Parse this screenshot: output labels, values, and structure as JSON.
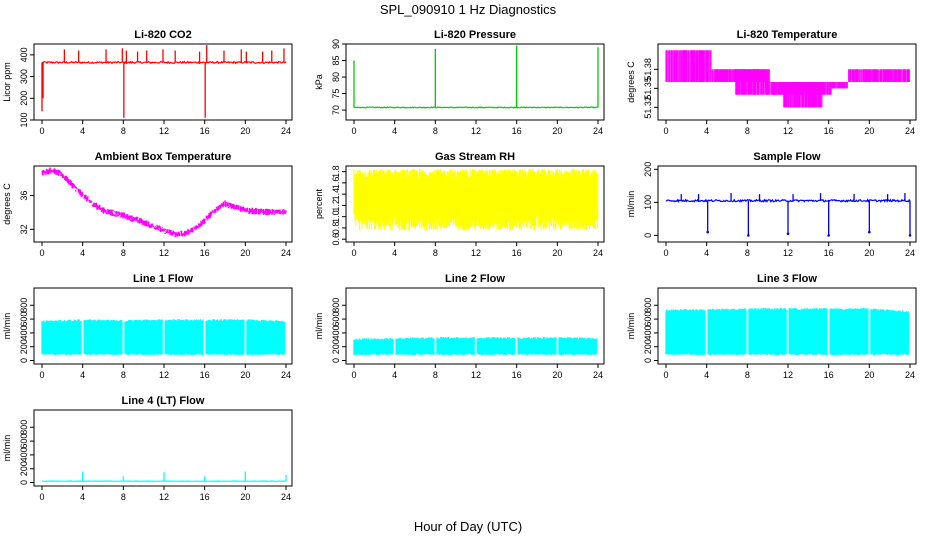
{
  "figure": {
    "title": "SPL_090910  1 Hz Diagnostics",
    "xlabel": "Hour of Day (UTC)"
  },
  "chart_data": [
    {
      "id": "co2",
      "type": "line",
      "title": "Li-820 CO2",
      "ylabel": "Licor ppm",
      "color": "#ff0000",
      "xlim": [
        0,
        24
      ],
      "ylim": [
        100,
        450
      ],
      "yticks": [
        "100",
        "200",
        "300",
        "400"
      ],
      "ytick_values": [
        100,
        200,
        300,
        400
      ],
      "xticks": [
        "0",
        "4",
        "8",
        "12",
        "16",
        "20",
        "24"
      ],
      "baseline": 365,
      "noise": 8,
      "drift": [],
      "spikes": [
        [
          0,
          140
        ],
        [
          0.1,
          200
        ],
        [
          2.2,
          425
        ],
        [
          3.6,
          420
        ],
        [
          6.3,
          425
        ],
        [
          7.9,
          430
        ],
        [
          8.05,
          110
        ],
        [
          8.3,
          420
        ],
        [
          9.4,
          415
        ],
        [
          10.3,
          420
        ],
        [
          11.9,
          425
        ],
        [
          13.1,
          420
        ],
        [
          15.5,
          415
        ],
        [
          16.05,
          110
        ],
        [
          16.2,
          445
        ],
        [
          17.9,
          420
        ],
        [
          19.6,
          425
        ],
        [
          20.1,
          415
        ],
        [
          21.7,
          415
        ],
        [
          22.6,
          420
        ],
        [
          23.8,
          430
        ]
      ],
      "drops": []
    },
    {
      "id": "pressure",
      "type": "line",
      "title": "Li-820 Pressure",
      "ylabel": "kPa",
      "color": "#00cc00",
      "xlim": [
        0,
        24
      ],
      "ylim": [
        67,
        90
      ],
      "yticks": [
        "70",
        "75",
        "80",
        "85",
        "90"
      ],
      "ytick_values": [
        70,
        75,
        80,
        85,
        90
      ],
      "xticks": [
        "0",
        "4",
        "8",
        "12",
        "16",
        "20",
        "24"
      ],
      "baseline": 70.8,
      "noise": 0.25,
      "drift": [],
      "spikes": [
        [
          0,
          85
        ],
        [
          8,
          88.5
        ],
        [
          16,
          89.5
        ],
        [
          24,
          89
        ]
      ],
      "drops": []
    },
    {
      "id": "temperature",
      "type": "line",
      "title": "Li-820 Temperature",
      "ylabel": "degrees C",
      "color": "#ff00ff",
      "xlim": [
        0,
        24
      ],
      "ylim": [
        51.3,
        51.42
      ],
      "yticks": [
        "51.32",
        "51.35",
        "51.38"
      ],
      "ytick_values": [
        51.32,
        51.35,
        51.38
      ],
      "xticks": [
        "0",
        "4",
        "8",
        "12",
        "16",
        "20",
        "24"
      ],
      "steps": [
        [
          0,
          4.5,
          51.36,
          51.41
        ],
        [
          4.5,
          9.8,
          51.36,
          51.38
        ],
        [
          6.8,
          10.2,
          51.34,
          51.38
        ],
        [
          10.2,
          16.3,
          51.34,
          51.36
        ],
        [
          11.5,
          15.4,
          51.32,
          51.36
        ],
        [
          16.3,
          17.9,
          51.35,
          51.36
        ],
        [
          17.9,
          24,
          51.36,
          51.38
        ]
      ]
    },
    {
      "id": "ambient",
      "type": "line",
      "title": "Ambient Box Temperature",
      "ylabel": "degrees C",
      "color": "#ff00ff",
      "xlim": [
        0,
        24
      ],
      "ylim": [
        30.5,
        39.5
      ],
      "yticks": [
        "32",
        "36"
      ],
      "ytick_values": [
        32,
        36
      ],
      "xticks": [
        "0",
        "4",
        "8",
        "12",
        "16",
        "20",
        "24"
      ],
      "curve": [
        [
          0,
          38.6
        ],
        [
          1,
          39.0
        ],
        [
          2,
          38.4
        ],
        [
          3,
          37.2
        ],
        [
          4,
          36.0
        ],
        [
          5,
          35.0
        ],
        [
          6,
          34.2
        ],
        [
          8,
          33.6
        ],
        [
          10,
          32.8
        ],
        [
          12,
          31.8
        ],
        [
          13,
          31.4
        ],
        [
          14,
          31.4
        ],
        [
          15,
          32.0
        ],
        [
          16,
          33.0
        ],
        [
          17,
          34.2
        ],
        [
          18,
          35.0
        ],
        [
          19,
          34.6
        ],
        [
          20,
          34.2
        ],
        [
          22,
          34.0
        ],
        [
          24,
          34.0
        ]
      ],
      "noise": 0.35
    },
    {
      "id": "rh",
      "type": "line",
      "title": "Gas Stream RH",
      "ylabel": "percent",
      "color": "#ffff00",
      "xlim": [
        0,
        24
      ],
      "ylim": [
        0.55,
        1.9
      ],
      "yticks": [
        "0.6",
        "0.8",
        "1.0",
        "1.2",
        "1.4",
        "1.6",
        "1.8"
      ],
      "ytick_values": [
        0.6,
        0.8,
        1.0,
        1.2,
        1.4,
        1.6,
        1.8
      ],
      "xticks": [
        "0",
        "4",
        "8",
        "12",
        "16",
        "20",
        "24"
      ],
      "band": [
        0.75,
        1.85
      ],
      "core": [
        1.05,
        1.65
      ]
    },
    {
      "id": "sample",
      "type": "line",
      "title": "Sample Flow",
      "ylabel": "ml/min",
      "color": "#0000ff",
      "xlim": [
        0,
        24
      ],
      "ylim": [
        -20,
        210
      ],
      "yticks": [
        "0",
        "100",
        "200"
      ],
      "ytick_values": [
        0,
        100,
        200
      ],
      "xticks": [
        "0",
        "4",
        "8",
        "12",
        "16",
        "20",
        "24"
      ],
      "baseline": 105,
      "noise": 6,
      "drift": [],
      "spikes": [
        [
          1.5,
          125
        ],
        [
          3.2,
          125
        ],
        [
          6.4,
          128
        ],
        [
          9.2,
          125
        ],
        [
          12.5,
          125
        ],
        [
          15.2,
          128
        ],
        [
          18.5,
          125
        ],
        [
          21.8,
          125
        ],
        [
          23.5,
          128
        ]
      ],
      "drops": [
        [
          4.1,
          10
        ],
        [
          8.1,
          0
        ],
        [
          12.0,
          5
        ],
        [
          16.0,
          0
        ],
        [
          20.0,
          10
        ],
        [
          24,
          0
        ]
      ]
    },
    {
      "id": "line1",
      "type": "area",
      "title": "Line 1 Flow",
      "ylabel": "ml/min",
      "color": "#00ffff",
      "xlim": [
        0,
        24
      ],
      "ylim": [
        -50,
        1050
      ],
      "yticks": [
        "0",
        "200",
        "400",
        "600",
        "800"
      ],
      "ytick_values": [
        0,
        200,
        400,
        600,
        800
      ],
      "xticks": [
        "0",
        "4",
        "8",
        "12",
        "16",
        "20",
        "24"
      ],
      "lower": 100,
      "upper": [
        [
          0,
          580
        ],
        [
          4,
          600
        ],
        [
          8,
          590
        ],
        [
          12,
          600
        ],
        [
          16,
          600
        ],
        [
          20,
          600
        ],
        [
          24,
          580
        ]
      ],
      "gaps": [
        4,
        8,
        12,
        16,
        20,
        24
      ]
    },
    {
      "id": "line2",
      "type": "area",
      "title": "Line 2 Flow",
      "ylabel": "ml/min",
      "color": "#00ffff",
      "xlim": [
        0,
        24
      ],
      "ylim": [
        -50,
        1050
      ],
      "yticks": [
        "0",
        "200",
        "400",
        "600",
        "800"
      ],
      "ytick_values": [
        0,
        200,
        400,
        600,
        800
      ],
      "xticks": [
        "0",
        "4",
        "8",
        "12",
        "16",
        "20",
        "24"
      ],
      "lower": 100,
      "upper": [
        [
          0,
          320
        ],
        [
          4,
          330
        ],
        [
          8,
          340
        ],
        [
          12,
          340
        ],
        [
          16,
          340
        ],
        [
          20,
          340
        ],
        [
          24,
          330
        ]
      ],
      "gaps": [
        4,
        8,
        12,
        16,
        20,
        24
      ]
    },
    {
      "id": "line3",
      "type": "area",
      "title": "Line 3 Flow",
      "ylabel": "ml/min",
      "color": "#00ffff",
      "xlim": [
        0,
        24
      ],
      "ylim": [
        -50,
        1050
      ],
      "yticks": [
        "0",
        "200",
        "400",
        "600",
        "800"
      ],
      "ytick_values": [
        0,
        200,
        400,
        600,
        800
      ],
      "xticks": [
        "0",
        "4",
        "8",
        "12",
        "16",
        "20",
        "24"
      ],
      "lower": 100,
      "upper": [
        [
          0,
          740
        ],
        [
          4,
          750
        ],
        [
          8,
          760
        ],
        [
          12,
          760
        ],
        [
          16,
          760
        ],
        [
          20,
          760
        ],
        [
          24,
          720
        ]
      ],
      "gaps": [
        4,
        8,
        12,
        16,
        20,
        24
      ]
    },
    {
      "id": "line4",
      "type": "line",
      "title": "Line 4 (LT) Flow",
      "ylabel": "ml/min",
      "color": "#00ffff",
      "xlim": [
        0,
        24
      ],
      "ylim": [
        -50,
        1050
      ],
      "yticks": [
        "0",
        "200",
        "400",
        "600",
        "800"
      ],
      "ytick_values": [
        0,
        200,
        400,
        600,
        800
      ],
      "xticks": [
        "0",
        "4",
        "8",
        "12",
        "16",
        "20",
        "24"
      ],
      "baseline": 20,
      "noise": 5,
      "drift": [],
      "spikes": [
        [
          4,
          160
        ],
        [
          8,
          90
        ],
        [
          12,
          150
        ],
        [
          16,
          90
        ],
        [
          20,
          160
        ],
        [
          24,
          110
        ]
      ],
      "drops": []
    }
  ]
}
